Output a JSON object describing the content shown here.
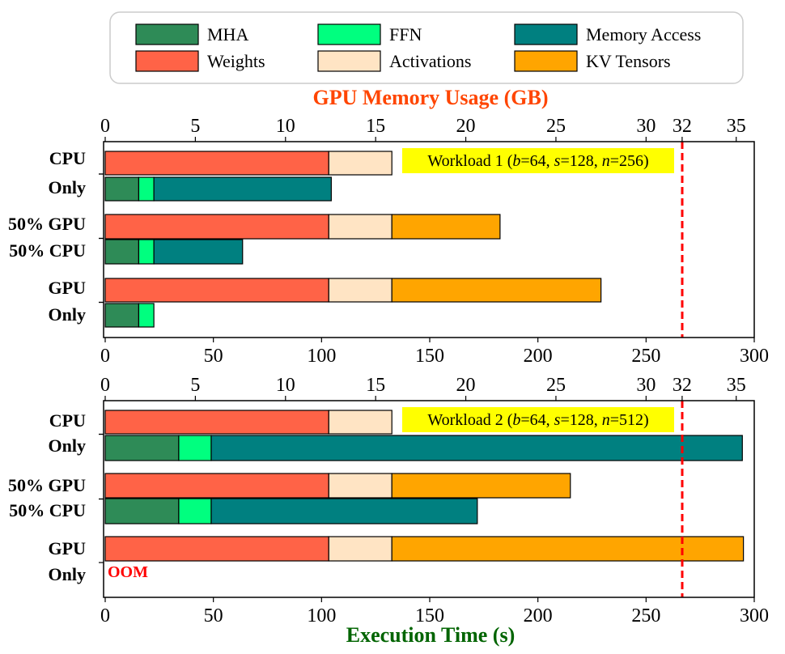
{
  "chart_data": {
    "type": "bar",
    "orientation": "horizontal-stacked",
    "colors": {
      "MHA": "#2e8b57",
      "FFN": "#00ff7f",
      "Memory Access": "#008080",
      "Weights": "#ff6347",
      "Activations": "#ffe4c4",
      "KV Tensors": "#ffa500",
      "threshold": "#ff0000",
      "workload_box": "#ffff00",
      "top_axis_title": "#ff4500",
      "bottom_axis_title": "#006400",
      "oom": "#ff0000"
    },
    "legend": {
      "row1": [
        "MHA",
        "FFN",
        "Memory Access"
      ],
      "row2": [
        "Weights",
        "Activations",
        "KV Tensors"
      ],
      "placement": "top"
    },
    "top_axis": {
      "title": "GPU Memory Usage (GB)",
      "ticks": [
        "0",
        "5",
        "10",
        "15",
        "20",
        "25",
        "30",
        "32",
        "35"
      ],
      "tick_values": [
        0,
        5,
        10,
        15,
        20,
        25,
        30,
        32,
        35
      ],
      "range": [
        0,
        36
      ]
    },
    "bottom_axis": {
      "title": "Execution Time (s)",
      "ticks": [
        "0",
        "50",
        "100",
        "150",
        "200",
        "250",
        "300"
      ],
      "tick_values": [
        0,
        50,
        100,
        150,
        200,
        250,
        300
      ],
      "range": [
        0,
        300
      ]
    },
    "memory_limit_gb": 32,
    "panels": [
      {
        "label": "Workload 1 (b=64, s=128, n=256)",
        "label_parts": [
          "Workload 1 (",
          "b",
          "=64, ",
          "s",
          "=128, ",
          "n",
          "=256)"
        ],
        "groups": [
          {
            "name": "CPU Only",
            "label_lines": [
              "CPU",
              "Only"
            ],
            "memory_gb": {
              "Weights": 12.4,
              "Activations": 3.5,
              "KV Tensors": 0
            },
            "time_s": {
              "MHA": 15.5,
              "FFN": 7,
              "Memory Access": 82
            }
          },
          {
            "name": "50% GPU 50% CPU",
            "label_lines": [
              "50% GPU",
              "50% CPU"
            ],
            "memory_gb": {
              "Weights": 12.4,
              "Activations": 3.5,
              "KV Tensors": 6
            },
            "time_s": {
              "MHA": 15.5,
              "FFN": 7,
              "Memory Access": 41
            }
          },
          {
            "name": "GPU Only",
            "label_lines": [
              "GPU",
              "Only"
            ],
            "memory_gb": {
              "Weights": 12.4,
              "Activations": 3.5,
              "KV Tensors": 11.6
            },
            "time_s": {
              "MHA": 15.5,
              "FFN": 7,
              "Memory Access": 0
            }
          }
        ]
      },
      {
        "label": "Workload 2 (b=64, s=128, n=512)",
        "label_parts": [
          "Workload 2 (",
          "b",
          "=64, ",
          "s",
          "=128, ",
          "n",
          "=512)"
        ],
        "groups": [
          {
            "name": "CPU Only",
            "label_lines": [
              "CPU",
              "Only"
            ],
            "memory_gb": {
              "Weights": 12.4,
              "Activations": 3.5,
              "KV Tensors": 0
            },
            "time_s": {
              "MHA": 34,
              "FFN": 15,
              "Memory Access": 245.5
            }
          },
          {
            "name": "50% GPU 50% CPU",
            "label_lines": [
              "50% GPU",
              "50% CPU"
            ],
            "memory_gb": {
              "Weights": 12.4,
              "Activations": 3.5,
              "KV Tensors": 9.9
            },
            "time_s": {
              "MHA": 34,
              "FFN": 15,
              "Memory Access": 123
            }
          },
          {
            "name": "GPU Only",
            "label_lines": [
              "GPU",
              "Only"
            ],
            "memory_gb": {
              "Weights": 12.4,
              "Activations": 3.5,
              "KV Tensors": 19.5
            },
            "time_s": {
              "MHA": 0,
              "FFN": 0,
              "Memory Access": 0
            },
            "note": "OOM"
          }
        ]
      }
    ]
  }
}
